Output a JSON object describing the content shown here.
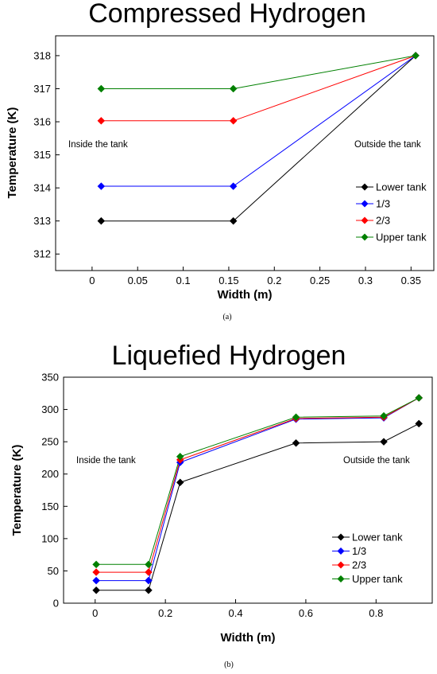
{
  "chart_data": [
    {
      "type": "line",
      "title": "Compressed Hydrogen",
      "xlabel": "Width (m)",
      "ylabel": "Temperature (K)",
      "xlim": [
        -0.04,
        0.375
      ],
      "ylim": [
        311.5,
        318.6
      ],
      "xticks": [
        0,
        0.05,
        0.1,
        0.15,
        0.2,
        0.25,
        0.3,
        0.35
      ],
      "xtick_labels": [
        "0",
        "0.05",
        "0.1",
        "0.15",
        "0.2",
        "0.25",
        "0.3",
        "0.35"
      ],
      "yticks": [
        312,
        313,
        314,
        315,
        316,
        317,
        318
      ],
      "ytick_labels": [
        "312",
        "313",
        "314",
        "315",
        "316",
        "317",
        "318"
      ],
      "x": [
        0.01,
        0.155,
        0.355
      ],
      "series": [
        {
          "name": "Lower tank",
          "color": "#000000",
          "values": [
            313,
            313,
            318
          ]
        },
        {
          "name": "1/3",
          "color": "#0000ff",
          "values": [
            314.05,
            314.05,
            318
          ]
        },
        {
          "name": "2/3",
          "color": "#ff0000",
          "values": [
            316.03,
            316.03,
            318
          ]
        },
        {
          "name": "Upper tank",
          "color": "#008000",
          "values": [
            317,
            317,
            318
          ]
        }
      ],
      "annotations": [
        "Inside the tank",
        "Outside the tank"
      ],
      "legend": "right",
      "grid": false,
      "caption": "(a)"
    },
    {
      "type": "line",
      "title": "Liquefied Hydrogen",
      "xlabel": "Width (m)",
      "ylabel": "Temperature (K)",
      "xlim": [
        -0.09,
        0.96
      ],
      "ylim": [
        0,
        350
      ],
      "xticks": [
        0,
        0.2,
        0.4,
        0.6,
        0.8
      ],
      "xtick_labels": [
        "0",
        "0.2",
        "0.4",
        "0.6",
        "0.8"
      ],
      "yticks": [
        0,
        50,
        100,
        150,
        200,
        250,
        300,
        350
      ],
      "ytick_labels": [
        "0",
        "50",
        "100",
        "150",
        "200",
        "250",
        "300",
        "350"
      ],
      "x": [
        0.003,
        0.152,
        0.242,
        0.572,
        0.822,
        0.922
      ],
      "series": [
        {
          "name": "Lower tank",
          "color": "#000000",
          "values": [
            20,
            20,
            187,
            248,
            250,
            278
          ]
        },
        {
          "name": "1/3",
          "color": "#0000ff",
          "values": [
            35,
            35,
            218,
            285,
            287,
            318
          ]
        },
        {
          "name": "2/3",
          "color": "#ff0000",
          "values": [
            48,
            48,
            222,
            286,
            288,
            318
          ]
        },
        {
          "name": "Upper tank",
          "color": "#008000",
          "values": [
            60,
            60,
            227,
            288,
            290,
            318
          ]
        }
      ],
      "annotations": [
        "Inside the tank",
        "Outside the tank"
      ],
      "legend": "lower-right",
      "grid": false,
      "caption": "(b)"
    }
  ]
}
